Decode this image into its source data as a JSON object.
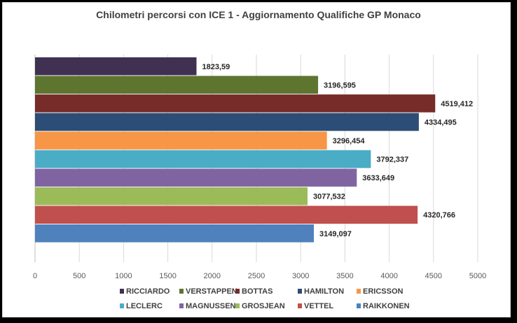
{
  "chart_data": {
    "type": "bar",
    "orientation": "horizontal",
    "title": "Chilometri percorsi con ICE 1 - Aggiornamento Qualifiche GP Monaco",
    "xlabel": "",
    "ylabel": "",
    "xlim": [
      0,
      5000
    ],
    "x_ticks": [
      "0",
      "500",
      "1000",
      "1500",
      "2000",
      "2500",
      "3000",
      "3500",
      "4000",
      "4500",
      "5000"
    ],
    "grid": "vertical",
    "legend_position": "bottom",
    "series": [
      {
        "name": "RICCIARDO",
        "value": 1823.59,
        "label": "1823,59",
        "color": "#403152"
      },
      {
        "name": "VERSTAPPEN",
        "value": 3196.595,
        "label": "3196,595",
        "color": "#5E7530"
      },
      {
        "name": "BOTTAS",
        "value": 4519.412,
        "label": "4519,412",
        "color": "#772C2A"
      },
      {
        "name": "HAMILTON",
        "value": 4334.495,
        "label": "4334,495",
        "color": "#2C4D75"
      },
      {
        "name": "ERICSSON",
        "value": 3296.454,
        "label": "3296,454",
        "color": "#F79646"
      },
      {
        "name": "LECLERC",
        "value": 3792.337,
        "label": "3792,337",
        "color": "#4BACC6"
      },
      {
        "name": "MAGNUSSEN",
        "value": 3633.649,
        "label": "3633,649",
        "color": "#8064A2"
      },
      {
        "name": "GROSJEAN",
        "value": 3077.532,
        "label": "3077,532",
        "color": "#9BBB59"
      },
      {
        "name": "VETTEL",
        "value": 4320.766,
        "label": "4320,766",
        "color": "#C0504D"
      },
      {
        "name": "RAIKKONEN",
        "value": 3149.097,
        "label": "3149,097",
        "color": "#4F81BD"
      }
    ]
  }
}
